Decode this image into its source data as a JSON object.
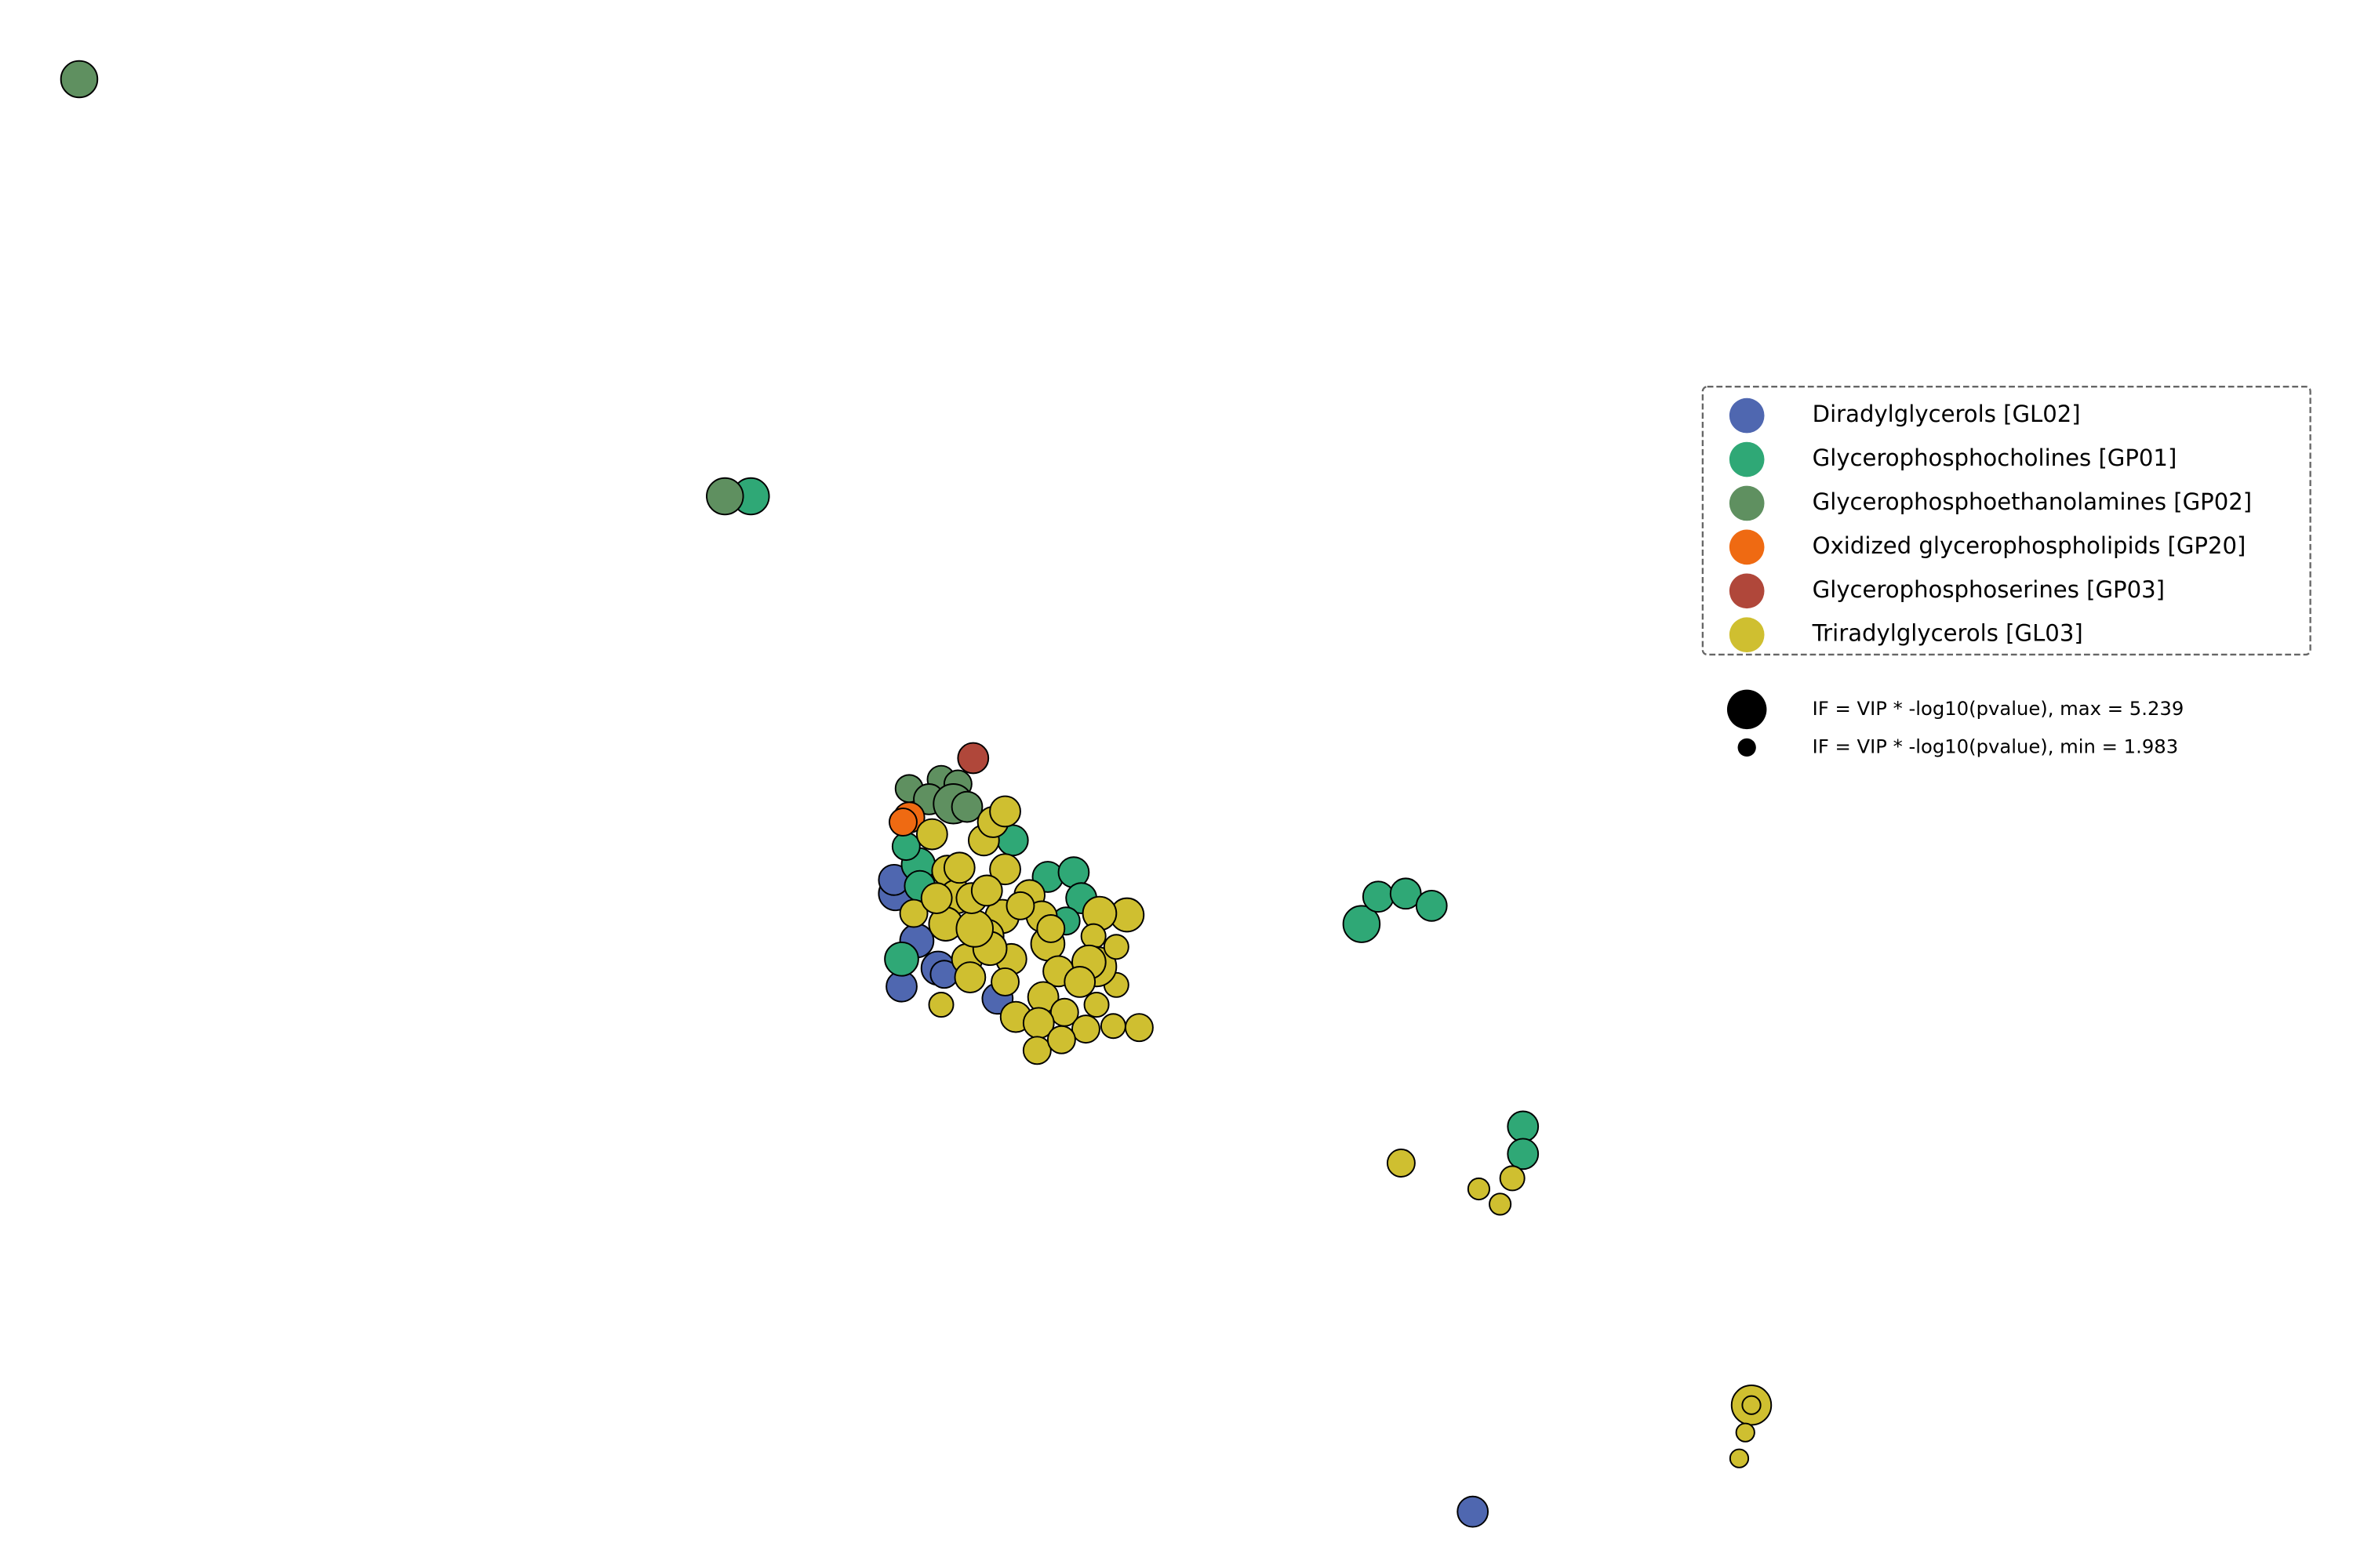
{
  "chart_data": {
    "type": "scatter",
    "xlim": [
      0,
      1545
    ],
    "ylim": [
      0,
      1030
    ],
    "legend": "right",
    "series": [
      {
        "name": "Diradylglycerols [GL02]",
        "color": "#4f67b0",
        "x": [
          967,
          592,
          588,
          587,
          602,
          616,
          655,
          620
        ],
        "y": [
          37,
          382,
          443,
          452,
          412,
          394,
          374,
          390
        ],
        "sizes": [
          3.84,
          3.84,
          4.31,
          3.84,
          4.31,
          4.31,
          3.84,
          3.38
        ]
      },
      {
        "name": "Glycerophosphocholines [GP01]",
        "color": "#2fa876",
        "x": [
          493,
          894,
          905,
          923,
          940,
          1000,
          1000,
          592,
          603,
          595,
          665,
          688,
          705,
          710,
          700,
          604
        ],
        "y": [
          704,
          423,
          441,
          443,
          435,
          290,
          272,
          400,
          462,
          474,
          478,
          454,
          457,
          440,
          425,
          448
        ],
        "sizes": [
          4.77,
          4.77,
          3.84,
          3.84,
          3.84,
          3.84,
          3.84,
          4.31,
          4.31,
          3.38,
          3.84,
          3.84,
          3.84,
          3.84,
          3.38,
          3.84
        ]
      },
      {
        "name": "Glycerophosphoethanolamines [GP02]",
        "color": "#5f9060",
        "x": [
          52,
          476,
          597,
          618,
          629,
          610,
          626,
          635
        ],
        "y": [
          978,
          704,
          512,
          518,
          515,
          505,
          502,
          500
        ],
        "sizes": [
          4.77,
          4.77,
          3.38,
          3.38,
          3.38,
          3.84,
          5.24,
          3.84
        ]
      },
      {
        "name": "Oxidized glycerophospholipids [GP20]",
        "color": "#ef6a12",
        "x": [
          597,
          593
        ],
        "y": [
          493,
          490
        ],
        "sizes": [
          3.84,
          3.38
        ]
      },
      {
        "name": "Glycerophosphoserines [GP03]",
        "color": "#b0473a",
        "x": [
          639
        ],
        "y": [
          532
        ],
        "sizes": [
          3.84
        ]
      },
      {
        "name": "Triradylglycerols [GL03]",
        "color": "#cfbf30",
        "x": [
          1150,
          1150,
          1146,
          1142,
          920,
          971,
          993,
          985,
          612,
          622,
          646,
          652,
          660,
          660,
          628,
          658,
          621,
          648,
          635,
          664,
          650,
          676,
          684,
          640,
          600,
          688,
          695,
          685,
          667,
          699,
          682,
          713,
          731,
          748,
          681,
          697,
          618,
          720,
          733,
          740,
          722,
          718,
          720,
          715,
          733,
          709,
          637,
          660,
          638,
          615,
          630,
          648,
          670,
          690
        ],
        "y": [
          107,
          107,
          89,
          72,
          266,
          249,
          256,
          239,
          482,
          458,
          478,
          490,
          497,
          459,
          441,
          428,
          423,
          415,
          400,
          400,
          407,
          442,
          428,
          420,
          430,
          410,
          392,
          375,
          362,
          365,
          358,
          354,
          356,
          355,
          340,
          347,
          370,
          370,
          383,
          429,
          430,
          415,
          395,
          398,
          408,
          385,
          388,
          385,
          440,
          440,
          460,
          445,
          435,
          420
        ],
        "sizes": [
          5.24,
          1.98,
          1.98,
          1.98,
          3.38,
          2.45,
          2.91,
          2.45,
          3.84,
          3.84,
          3.84,
          3.84,
          3.84,
          3.84,
          4.31,
          4.31,
          4.31,
          4.31,
          3.84,
          3.84,
          4.31,
          3.84,
          3.84,
          4.77,
          3.38,
          4.31,
          3.84,
          3.84,
          3.84,
          3.38,
          3.84,
          3.38,
          2.91,
          3.38,
          3.38,
          3.38,
          2.91,
          2.91,
          2.91,
          4.31,
          4.31,
          2.91,
          5.24,
          4.31,
          2.91,
          3.84,
          3.84,
          3.38,
          3.84,
          3.84,
          3.84,
          3.84,
          3.38,
          3.38
        ]
      }
    ],
    "size_legend": [
      {
        "value": 5.239,
        "label": "IF = VIP * -log10(pvalue), max = 5.239"
      },
      {
        "value": 1.983,
        "label": "IF = VIP * -log10(pvalue), min = 1.983"
      }
    ]
  }
}
